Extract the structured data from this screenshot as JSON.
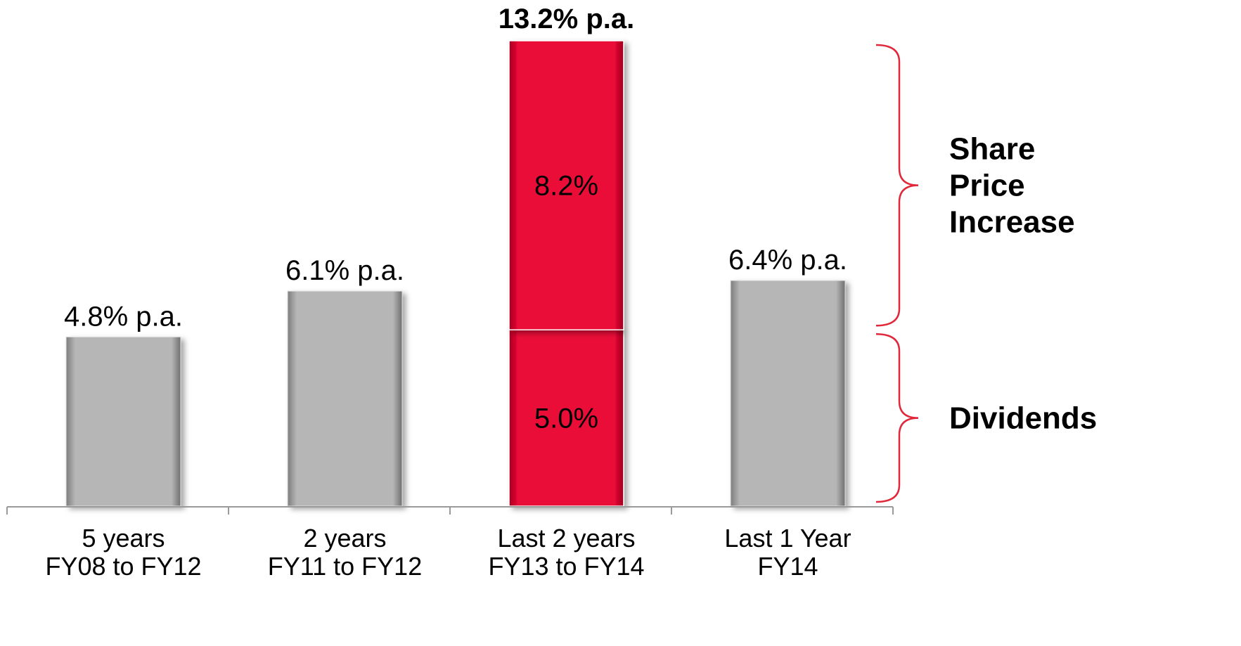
{
  "colors": {
    "grey_bar": "#b3b3b3",
    "red_bar": "#e8073a",
    "brace": "#e0283a",
    "axis": "#9a9a9a"
  },
  "chart_data": {
    "type": "bar",
    "categories": [
      [
        "5 years",
        "FY08 to FY12"
      ],
      [
        "2 years",
        "FY11 to FY12"
      ],
      [
        "Last 2 years",
        "FY13 to FY14"
      ],
      [
        "Last 1 Year",
        "FY14"
      ]
    ],
    "values": [
      4.8,
      6.1,
      13.2,
      6.4
    ],
    "value_labels": [
      "4.8% p.a.",
      "6.1% p.a.",
      "13.2% p.a.",
      "6.4% p.a."
    ],
    "highlight_index": 2,
    "stacked_segments": [
      {
        "name": "Dividends",
        "value": 5.0,
        "label": "5.0%"
      },
      {
        "name": "Share Price Increase",
        "value": 8.2,
        "label": "8.2%"
      }
    ],
    "braces": [
      {
        "label_lines": [
          "Share",
          "Price",
          "Increase"
        ],
        "segment": "Share Price Increase"
      },
      {
        "label_lines": [
          "Dividends"
        ],
        "segment": "Dividends"
      }
    ],
    "ylim": [
      0,
      13.2
    ],
    "grid": false,
    "title": "",
    "xlabel": "",
    "ylabel": ""
  }
}
